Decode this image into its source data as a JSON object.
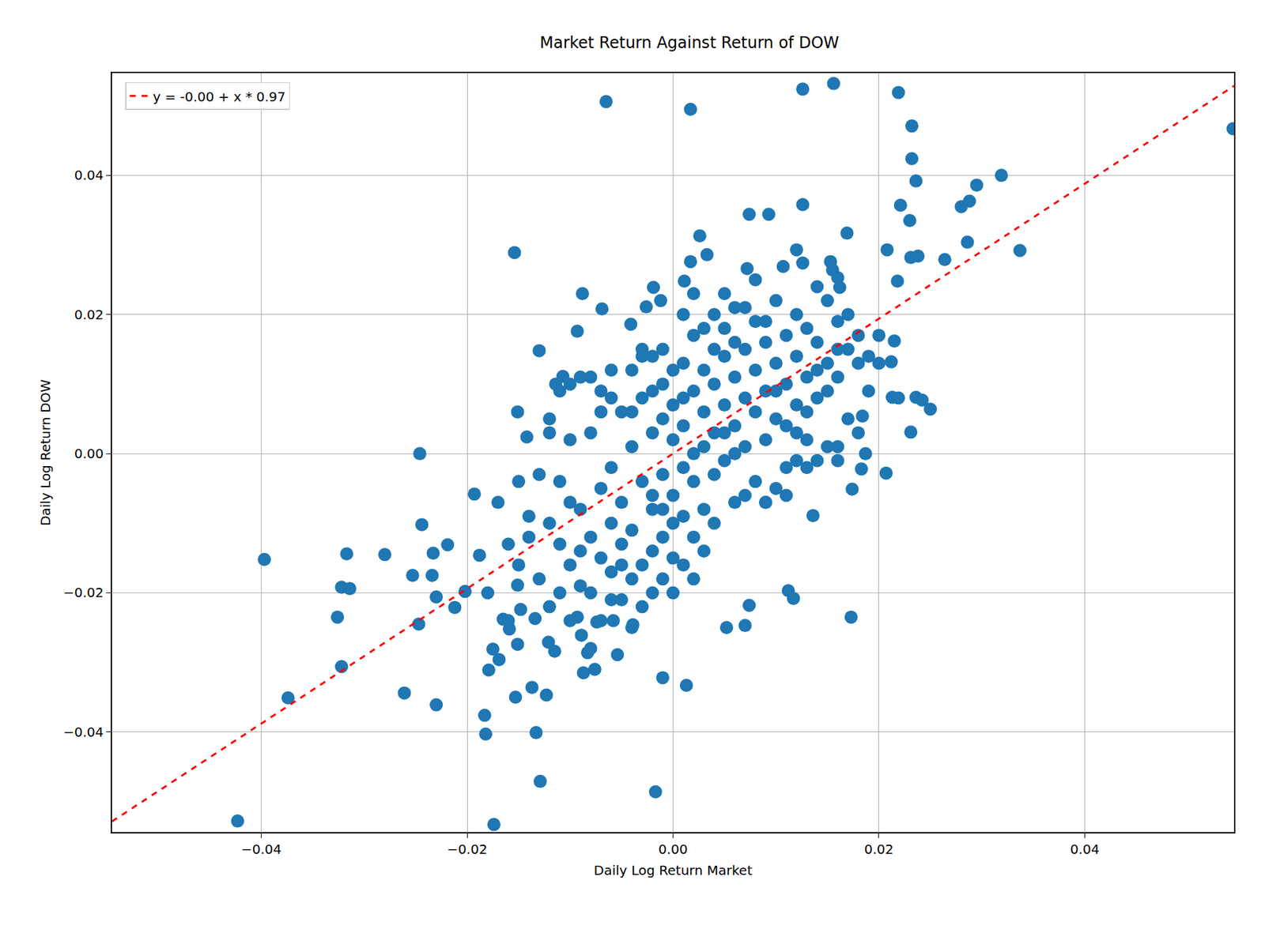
{
  "chart_data": {
    "type": "scatter",
    "title": "Market Return Against Return of DOW",
    "x_label": "Daily Log Return Market",
    "y_label": "Daily Log Return DOW",
    "color": "#1f77b4",
    "marker": "circle",
    "x": [
      -0.0065,
      0.0017,
      0.0126,
      0.0156,
      0.0219,
      0.0232,
      0.0232,
      0.0236,
      0.0544,
      0.0319,
      0.0295,
      0.0288,
      0.028,
      0.0337,
      0.0286,
      0.0264,
      0.0238,
      0.0231,
      0.0208,
      0.0221,
      0.023,
      0.0218,
      0.0215,
      0.0212,
      0.0213,
      0.0219,
      0.0236,
      0.0242,
      0.025,
      0.0231,
      0.0207,
      0.0187,
      0.0183,
      0.0184,
      0.0174,
      0.0173,
      0.0117,
      0.0112,
      0.0136,
      0.0074,
      0.007,
      0.0052,
      0.0013,
      -0.001,
      -0.0017,
      -0.0174,
      -0.0423,
      -0.0129,
      -0.0133,
      -0.0182,
      -0.0183,
      -0.023,
      -0.0261,
      -0.0374,
      -0.0322,
      -0.0326,
      -0.0397,
      -0.0317,
      -0.0322,
      -0.0314,
      -0.028,
      -0.0253,
      -0.0247,
      -0.0244,
      -0.0246,
      -0.0234,
      -0.0233,
      -0.023,
      -0.0219,
      -0.0212,
      -0.0202,
      -0.0193,
      -0.0188,
      -0.0154,
      -0.0142,
      -0.0151,
      -0.013,
      -0.0107,
      -0.0114,
      -0.0088,
      -0.0069,
      -0.0093,
      -0.0041,
      -0.0019,
      -0.0026,
      -0.0012,
      0.0011,
      0.0017,
      0.0026,
      0.0033,
      0.0074,
      0.0093,
      0.0126,
      0.0169,
      0.0072,
      0.012,
      0.0126,
      0.0153,
      0.0155,
      0.016,
      0.0162,
      0.0107,
      -0.0054,
      -0.0039,
      -0.0058,
      -0.0074,
      -0.0083,
      -0.0087,
      -0.0076,
      -0.0121,
      -0.0115,
      -0.0137,
      -0.0123,
      -0.0153,
      -0.0151,
      -0.0159,
      -0.0175,
      -0.0169,
      -0.0179,
      -0.0165,
      -0.0134,
      -0.0148,
      -0.0151,
      -0.0093,
      -0.0089,
      -0.012,
      -0.011,
      -0.01,
      -0.01,
      -0.009,
      -0.009,
      -0.008,
      -0.008,
      -0.007,
      -0.007,
      -0.007,
      -0.006,
      -0.006,
      -0.006,
      -0.005,
      -0.005,
      -0.005,
      -0.004,
      -0.004,
      -0.004,
      -0.003,
      -0.003,
      -0.003,
      -0.002,
      -0.002,
      -0.002,
      -0.002,
      -0.001,
      -0.001,
      -0.001,
      0.0,
      0.0,
      0.0,
      0.0,
      0.001,
      0.001,
      0.001,
      0.001,
      0.002,
      0.002,
      0.002,
      0.002,
      0.003,
      0.003,
      0.003,
      0.003,
      0.004,
      0.004,
      0.004,
      0.004,
      0.005,
      0.005,
      0.005,
      0.005,
      0.006,
      0.006,
      0.006,
      0.006,
      0.007,
      0.007,
      0.007,
      0.008,
      0.008,
      0.008,
      0.009,
      0.009,
      0.009,
      0.01,
      0.01,
      0.01,
      0.011,
      0.011,
      0.011,
      0.012,
      0.012,
      0.012,
      0.013,
      0.013,
      0.014,
      0.014,
      0.014,
      0.015,
      0.015,
      0.016,
      0.016,
      0.017,
      0.017,
      0.018,
      0.018,
      0.019,
      0.019,
      0.02,
      0.02,
      -0.013,
      -0.012,
      -0.011,
      -0.01,
      -0.009,
      -0.008,
      -0.007,
      -0.006,
      -0.005,
      -0.004,
      -0.003,
      -0.002,
      -0.001,
      -0.001,
      0.0,
      0.0,
      0.001,
      0.001,
      0.002,
      0.002,
      0.003,
      0.003,
      0.004,
      0.004,
      0.005,
      0.005,
      0.006,
      0.006,
      0.007,
      0.007,
      0.008,
      0.008,
      0.009,
      0.009,
      0.01,
      0.01,
      0.011,
      0.012,
      0.012,
      0.013,
      0.013,
      0.014,
      0.015,
      0.015,
      0.016,
      0.016,
      -0.014,
      -0.015,
      -0.016,
      -0.017,
      -0.018,
      -0.016,
      -0.015,
      -0.014,
      -0.013,
      -0.012,
      -0.011,
      -0.01,
      -0.009,
      -0.008,
      -0.007,
      -0.006,
      -0.005,
      -0.004,
      -0.003,
      -0.002,
      -0.001,
      0.0,
      0.001,
      0.002,
      -0.011,
      -0.012,
      -0.01,
      -0.008,
      -0.006,
      -0.004,
      -0.003,
      -0.002,
      -0.001,
      0.016,
      0.018,
      0.017,
      0.014,
      0.013,
      0.011,
      0.009
    ],
    "values": [
      0.0506,
      0.0495,
      0.0524,
      0.0532,
      0.0519,
      0.0471,
      0.0424,
      0.0392,
      0.0467,
      0.04,
      0.0386,
      0.0363,
      0.0355,
      0.0292,
      0.0304,
      0.0279,
      0.0284,
      0.0282,
      0.0293,
      0.0357,
      0.0335,
      0.0248,
      0.0162,
      0.0132,
      0.0081,
      0.008,
      0.0081,
      0.0077,
      0.0064,
      0.0031,
      -0.0028,
      0.0,
      -0.0022,
      0.0054,
      -0.0051,
      -0.0235,
      -0.0208,
      -0.0197,
      -0.0089,
      -0.0218,
      -0.0247,
      -0.025,
      -0.0333,
      -0.0322,
      -0.0486,
      -0.0533,
      -0.0528,
      -0.0471,
      -0.0401,
      -0.0403,
      -0.0376,
      -0.0361,
      -0.0344,
      -0.0351,
      -0.0306,
      -0.0235,
      -0.0152,
      -0.0144,
      -0.0192,
      -0.0194,
      -0.0145,
      -0.0175,
      -0.0245,
      -0.0102,
      0.0,
      -0.0175,
      -0.0143,
      -0.0206,
      -0.0131,
      -0.0221,
      -0.0198,
      -0.0058,
      -0.0146,
      0.0289,
      0.0024,
      0.006,
      0.0148,
      0.0111,
      0.01,
      0.023,
      0.0208,
      0.0176,
      0.0186,
      0.0239,
      0.0211,
      0.022,
      0.0248,
      0.0276,
      0.0313,
      0.0286,
      0.0344,
      0.0344,
      0.0358,
      0.0317,
      0.0266,
      0.0293,
      0.0274,
      0.0276,
      0.0264,
      0.0253,
      0.0239,
      0.0269,
      -0.0289,
      -0.0246,
      -0.024,
      -0.0242,
      -0.0286,
      -0.0315,
      -0.031,
      -0.0271,
      -0.0284,
      -0.0336,
      -0.0347,
      -0.035,
      -0.0274,
      -0.0252,
      -0.0281,
      -0.0296,
      -0.0311,
      -0.0238,
      -0.0237,
      -0.0224,
      -0.0189,
      -0.0235,
      -0.0261,
      -0.01,
      -0.004,
      -0.016,
      0.002,
      -0.008,
      -0.019,
      -0.012,
      0.003,
      -0.005,
      -0.015,
      0.009,
      -0.01,
      -0.002,
      -0.017,
      0.006,
      -0.007,
      -0.013,
      0.001,
      -0.011,
      0.012,
      -0.004,
      -0.016,
      0.008,
      -0.008,
      0.003,
      -0.02,
      0.014,
      -0.003,
      -0.012,
      0.01,
      0.002,
      -0.006,
      0.007,
      -0.015,
      0.004,
      -0.009,
      0.013,
      -0.002,
      0.009,
      -0.004,
      0.017,
      -0.012,
      0.006,
      0.001,
      0.012,
      -0.008,
      0.01,
      0.003,
      0.02,
      -0.003,
      0.014,
      0.007,
      -0.001,
      0.018,
      0.011,
      0.004,
      -0.007,
      0.021,
      0.015,
      0.008,
      0.001,
      0.012,
      0.019,
      -0.004,
      0.009,
      0.016,
      0.002,
      0.013,
      0.005,
      0.022,
      0.01,
      0.017,
      -0.002,
      0.014,
      0.007,
      0.02,
      0.011,
      0.002,
      0.016,
      0.008,
      0.024,
      0.013,
      0.001,
      0.019,
      0.011,
      0.015,
      0.02,
      0.013,
      0.017,
      0.014,
      0.009,
      0.017,
      0.013,
      -0.003,
      0.005,
      -0.02,
      -0.024,
      0.011,
      -0.028,
      0.006,
      0.012,
      -0.021,
      -0.018,
      0.015,
      -0.014,
      0.005,
      -0.018,
      0.012,
      -0.01,
      0.02,
      0.008,
      0.0,
      0.023,
      -0.014,
      0.018,
      0.015,
      -0.01,
      0.023,
      0.003,
      0.016,
      0.0,
      0.021,
      -0.006,
      0.006,
      0.025,
      -0.007,
      0.019,
      0.009,
      -0.005,
      0.004,
      0.003,
      -0.001,
      0.018,
      0.006,
      0.012,
      0.022,
      0.009,
      0.001,
      0.015,
      -0.009,
      -0.004,
      -0.013,
      -0.007,
      -0.02,
      -0.024,
      -0.016,
      -0.012,
      -0.018,
      -0.022,
      -0.013,
      -0.007,
      -0.014,
      -0.02,
      -0.024,
      -0.021,
      -0.016,
      -0.025,
      -0.022,
      -0.006,
      -0.008,
      -0.02,
      -0.016,
      -0.018,
      0.009,
      0.003,
      0.01,
      0.011,
      0.008,
      0.006,
      0.014,
      0.009,
      0.015,
      -0.001,
      0.003,
      0.005,
      -0.001,
      -0.002,
      -0.006,
      -0.007
    ],
    "fit": {
      "name": "y = -0.00 + x * 0.97",
      "intercept": 0.0,
      "slope": 0.97,
      "color": "#ff0000",
      "line_style": "dash"
    },
    "xlim": [
      -0.0545,
      0.0545
    ],
    "ylim": [
      -0.0544,
      0.0547
    ],
    "xticks": [
      {
        "value": -0.04,
        "label": "−0.04"
      },
      {
        "value": -0.02,
        "label": "−0.02"
      },
      {
        "value": 0,
        "label": "0.00"
      },
      {
        "value": 0.02,
        "label": "0.02"
      },
      {
        "value": 0.04,
        "label": "0.04"
      }
    ],
    "yticks": [
      {
        "value": -0.04,
        "label": "−0.04"
      },
      {
        "value": -0.02,
        "label": "−0.02"
      },
      {
        "value": 0,
        "label": "0.00"
      },
      {
        "value": 0.02,
        "label": "0.02"
      },
      {
        "value": 0.04,
        "label": "0.04"
      }
    ],
    "grid": true,
    "legend": "upper left"
  }
}
